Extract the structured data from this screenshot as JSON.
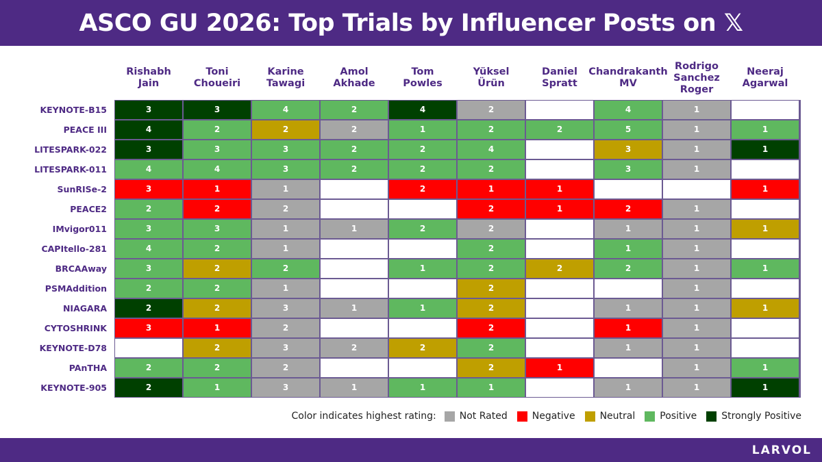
{
  "header": {
    "title": "ASCO GU 2026: Top Trials by Influencer Posts on 𝕏"
  },
  "footer": {
    "brand": "LARVOL"
  },
  "colors": {
    "not_rated": "#a6a6a6",
    "negative": "#ff0000",
    "neutral": "#bf9f00",
    "positive": "#5fb85f",
    "strongly_positive": "#004000",
    "empty": "#ffffff"
  },
  "legend": {
    "intro": "Color indicates highest rating:",
    "items": [
      {
        "label": "Not Rated",
        "key": "not_rated"
      },
      {
        "label": "Negative",
        "key": "negative"
      },
      {
        "label": "Neutral",
        "key": "neutral"
      },
      {
        "label": "Positive",
        "key": "positive"
      },
      {
        "label": "Strongly Positive",
        "key": "strongly_positive"
      }
    ]
  },
  "chart_data": {
    "type": "heatmap",
    "columns": [
      "Rishabh\nJain",
      "Toni\nChoueiri",
      "Karine\nTawagi",
      "Amol\nAkhade",
      "Tom\nPowles",
      "Yüksel\nÜrün",
      "Daniel\nSpratt",
      "Chandrakanth\nMV",
      "Rodrigo\nSanchez\nRoger",
      "Neeraj\nAgarwal"
    ],
    "rows": [
      {
        "trial": "KEYNOTE-B15",
        "cells": [
          [
            "sp",
            3
          ],
          [
            "sp",
            3
          ],
          [
            "p",
            4
          ],
          [
            "p",
            2
          ],
          [
            "sp",
            4
          ],
          [
            "nr",
            2
          ],
          null,
          [
            "p",
            4
          ],
          [
            "nr",
            1
          ],
          null
        ]
      },
      {
        "trial": "PEACE III",
        "cells": [
          [
            "sp",
            4
          ],
          [
            "p",
            2
          ],
          [
            "nu",
            2
          ],
          [
            "nr",
            2
          ],
          [
            "p",
            1
          ],
          [
            "p",
            2
          ],
          [
            "p",
            2
          ],
          [
            "p",
            5
          ],
          [
            "nr",
            1
          ],
          [
            "p",
            1
          ]
        ]
      },
      {
        "trial": "LITESPARK-022",
        "cells": [
          [
            "sp",
            3
          ],
          [
            "p",
            3
          ],
          [
            "p",
            3
          ],
          [
            "p",
            2
          ],
          [
            "p",
            2
          ],
          [
            "p",
            4
          ],
          null,
          [
            "nu",
            3
          ],
          [
            "nr",
            1
          ],
          [
            "sp",
            1
          ]
        ]
      },
      {
        "trial": "LITESPARK-011",
        "cells": [
          [
            "p",
            4
          ],
          [
            "p",
            4
          ],
          [
            "p",
            3
          ],
          [
            "p",
            2
          ],
          [
            "p",
            2
          ],
          [
            "p",
            2
          ],
          null,
          [
            "p",
            3
          ],
          [
            "nr",
            1
          ],
          null
        ]
      },
      {
        "trial": "SunRISe-2",
        "cells": [
          [
            "n",
            3
          ],
          [
            "n",
            1
          ],
          [
            "nr",
            1
          ],
          null,
          [
            "n",
            2
          ],
          [
            "n",
            1
          ],
          [
            "n",
            1
          ],
          null,
          null,
          [
            "n",
            1
          ]
        ]
      },
      {
        "trial": "PEACE2",
        "cells": [
          [
            "p",
            2
          ],
          [
            "n",
            2
          ],
          [
            "nr",
            2
          ],
          null,
          null,
          [
            "n",
            2
          ],
          [
            "n",
            1
          ],
          [
            "n",
            2
          ],
          [
            "nr",
            1
          ],
          null
        ]
      },
      {
        "trial": "IMvigor011",
        "cells": [
          [
            "p",
            3
          ],
          [
            "p",
            3
          ],
          [
            "nr",
            1
          ],
          [
            "nr",
            1
          ],
          [
            "p",
            2
          ],
          [
            "nr",
            2
          ],
          null,
          [
            "nr",
            1
          ],
          [
            "nr",
            1
          ],
          [
            "nu",
            1
          ]
        ]
      },
      {
        "trial": "CAPItello-281",
        "cells": [
          [
            "p",
            4
          ],
          [
            "p",
            2
          ],
          [
            "nr",
            1
          ],
          null,
          null,
          [
            "p",
            2
          ],
          null,
          [
            "p",
            1
          ],
          [
            "nr",
            1
          ],
          null
        ]
      },
      {
        "trial": "BRCAAway",
        "cells": [
          [
            "p",
            3
          ],
          [
            "nu",
            2
          ],
          [
            "p",
            2
          ],
          null,
          [
            "p",
            1
          ],
          [
            "p",
            2
          ],
          [
            "nu",
            2
          ],
          [
            "p",
            2
          ],
          [
            "nr",
            1
          ],
          [
            "p",
            1
          ]
        ]
      },
      {
        "trial": "PSMAddition",
        "cells": [
          [
            "p",
            2
          ],
          [
            "p",
            2
          ],
          [
            "nr",
            1
          ],
          null,
          null,
          [
            "nu",
            2
          ],
          null,
          null,
          [
            "nr",
            1
          ],
          null
        ]
      },
      {
        "trial": "NIAGARA",
        "cells": [
          [
            "sp",
            2
          ],
          [
            "nu",
            2
          ],
          [
            "nr",
            3
          ],
          [
            "nr",
            1
          ],
          [
            "p",
            1
          ],
          [
            "nu",
            2
          ],
          null,
          [
            "nr",
            1
          ],
          [
            "nr",
            1
          ],
          [
            "nu",
            1
          ]
        ]
      },
      {
        "trial": "CYTOSHRINK",
        "cells": [
          [
            "n",
            3
          ],
          [
            "n",
            1
          ],
          [
            "nr",
            2
          ],
          null,
          null,
          [
            "n",
            2
          ],
          null,
          [
            "n",
            1
          ],
          [
            "nr",
            1
          ],
          null
        ]
      },
      {
        "trial": "KEYNOTE-D78",
        "cells": [
          null,
          [
            "nu",
            2
          ],
          [
            "nr",
            3
          ],
          [
            "nr",
            2
          ],
          [
            "nu",
            2
          ],
          [
            "p",
            2
          ],
          null,
          [
            "nr",
            1
          ],
          [
            "nr",
            1
          ],
          null
        ]
      },
      {
        "trial": "PAnTHA",
        "cells": [
          [
            "p",
            2
          ],
          [
            "p",
            2
          ],
          [
            "nr",
            2
          ],
          null,
          null,
          [
            "nu",
            2
          ],
          [
            "n",
            1
          ],
          null,
          [
            "nr",
            1
          ],
          [
            "p",
            1
          ]
        ]
      },
      {
        "trial": "KEYNOTE-905",
        "cells": [
          [
            "sp",
            2
          ],
          [
            "p",
            1
          ],
          [
            "nr",
            3
          ],
          [
            "nr",
            1
          ],
          [
            "p",
            1
          ],
          [
            "p",
            1
          ],
          null,
          [
            "nr",
            1
          ],
          [
            "nr",
            1
          ],
          [
            "sp",
            1
          ]
        ]
      }
    ],
    "rating_codes": {
      "nr": "not_rated",
      "n": "negative",
      "nu": "neutral",
      "p": "positive",
      "sp": "strongly_positive"
    }
  }
}
